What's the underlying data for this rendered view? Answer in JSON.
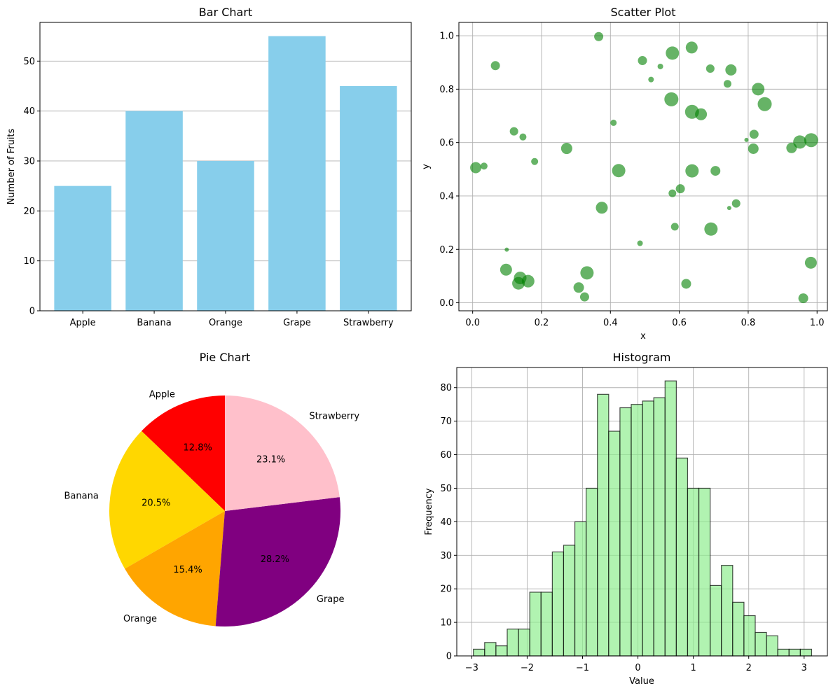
{
  "chart_data": [
    {
      "type": "bar",
      "title": "Bar Chart",
      "xlabel": "",
      "ylabel": "Number of Fruits",
      "categories": [
        "Apple",
        "Banana",
        "Orange",
        "Grape",
        "Strawberry"
      ],
      "values": [
        25,
        40,
        30,
        55,
        45
      ],
      "ylim": [
        0,
        57.75
      ],
      "yticks": [
        0,
        10,
        20,
        30,
        40,
        50
      ],
      "color": "#87ceeb",
      "grid": "y"
    },
    {
      "type": "scatter",
      "title": "Scatter Plot",
      "xlabel": "x",
      "ylabel": "y",
      "xlim": [
        -0.04,
        1.03
      ],
      "ylim": [
        -0.03,
        1.05
      ],
      "xticks": [
        "0.0",
        "0.2",
        "0.4",
        "0.6",
        "0.8",
        "1.0"
      ],
      "yticks": [
        "0.0",
        "0.2",
        "0.4",
        "0.6",
        "0.8",
        "1.0"
      ],
      "color": "#008000",
      "alpha": 0.6,
      "grid": "both",
      "points": [
        {
          "x": 0.366,
          "y": 0.997,
          "s": 13
        },
        {
          "x": 0.066,
          "y": 0.888,
          "s": 13
        },
        {
          "x": 0.493,
          "y": 0.907,
          "s": 13
        },
        {
          "x": 0.545,
          "y": 0.885,
          "s": 8
        },
        {
          "x": 0.518,
          "y": 0.836,
          "s": 8
        },
        {
          "x": 0.58,
          "y": 0.935,
          "s": 19
        },
        {
          "x": 0.636,
          "y": 0.956,
          "s": 17
        },
        {
          "x": 0.69,
          "y": 0.877,
          "s": 12
        },
        {
          "x": 0.75,
          "y": 0.872,
          "s": 16
        },
        {
          "x": 0.74,
          "y": 0.82,
          "s": 11
        },
        {
          "x": 0.829,
          "y": 0.8,
          "s": 18
        },
        {
          "x": 0.848,
          "y": 0.744,
          "s": 20
        },
        {
          "x": 0.577,
          "y": 0.762,
          "s": 20
        },
        {
          "x": 0.637,
          "y": 0.715,
          "s": 20
        },
        {
          "x": 0.663,
          "y": 0.706,
          "s": 17
        },
        {
          "x": 0.409,
          "y": 0.674,
          "s": 9
        },
        {
          "x": 0.12,
          "y": 0.642,
          "s": 12
        },
        {
          "x": 0.146,
          "y": 0.621,
          "s": 10
        },
        {
          "x": 0.18,
          "y": 0.529,
          "s": 10
        },
        {
          "x": 0.273,
          "y": 0.578,
          "s": 16
        },
        {
          "x": 0.009,
          "y": 0.506,
          "s": 16
        },
        {
          "x": 0.033,
          "y": 0.512,
          "s": 10
        },
        {
          "x": 0.424,
          "y": 0.495,
          "s": 19
        },
        {
          "x": 0.637,
          "y": 0.494,
          "s": 19
        },
        {
          "x": 0.705,
          "y": 0.494,
          "s": 14
        },
        {
          "x": 0.795,
          "y": 0.61,
          "s": 6
        },
        {
          "x": 0.817,
          "y": 0.631,
          "s": 13
        },
        {
          "x": 0.815,
          "y": 0.577,
          "s": 15
        },
        {
          "x": 0.926,
          "y": 0.58,
          "s": 15
        },
        {
          "x": 0.95,
          "y": 0.602,
          "s": 19
        },
        {
          "x": 0.983,
          "y": 0.609,
          "s": 20
        },
        {
          "x": 0.603,
          "y": 0.427,
          "s": 13
        },
        {
          "x": 0.58,
          "y": 0.41,
          "s": 11
        },
        {
          "x": 0.375,
          "y": 0.356,
          "s": 17
        },
        {
          "x": 0.765,
          "y": 0.372,
          "s": 12
        },
        {
          "x": 0.745,
          "y": 0.355,
          "s": 6
        },
        {
          "x": 0.587,
          "y": 0.285,
          "s": 11
        },
        {
          "x": 0.692,
          "y": 0.276,
          "s": 19
        },
        {
          "x": 0.099,
          "y": 0.199,
          "s": 6
        },
        {
          "x": 0.486,
          "y": 0.223,
          "s": 8
        },
        {
          "x": 0.097,
          "y": 0.124,
          "s": 17
        },
        {
          "x": 0.138,
          "y": 0.093,
          "s": 18
        },
        {
          "x": 0.133,
          "y": 0.073,
          "s": 18
        },
        {
          "x": 0.161,
          "y": 0.081,
          "s": 18
        },
        {
          "x": 0.332,
          "y": 0.112,
          "s": 19
        },
        {
          "x": 0.308,
          "y": 0.057,
          "s": 15
        },
        {
          "x": 0.325,
          "y": 0.022,
          "s": 13
        },
        {
          "x": 0.62,
          "y": 0.071,
          "s": 14
        },
        {
          "x": 0.982,
          "y": 0.15,
          "s": 17
        },
        {
          "x": 0.96,
          "y": 0.017,
          "s": 14
        }
      ]
    },
    {
      "type": "pie",
      "title": "Pie Chart",
      "labels": [
        "Apple",
        "Banana",
        "Orange",
        "Grape",
        "Strawberry"
      ],
      "values": [
        25,
        40,
        30,
        55,
        45
      ],
      "percent_labels": [
        "12.8%",
        "20.5%",
        "15.4%",
        "28.2%",
        "23.1%"
      ],
      "colors": [
        "#ff0000",
        "#ffd700",
        "#ffa500",
        "#800080",
        "#ffc0cb"
      ],
      "startangle": 90
    },
    {
      "type": "bar",
      "subtype": "histogram",
      "title": "Histogram",
      "xlabel": "Value",
      "ylabel": "Frequency",
      "bin_start": -2.97,
      "bin_width": 0.2035,
      "counts": [
        2,
        4,
        3,
        8,
        8,
        19,
        19,
        31,
        33,
        40,
        50,
        78,
        67,
        74,
        75,
        76,
        77,
        82,
        59,
        50,
        50,
        21,
        27,
        16,
        12,
        7,
        6,
        2,
        2,
        2
      ],
      "xlim": [
        -3.27,
        3.42
      ],
      "ylim": [
        0,
        86
      ],
      "xticks": [
        -3,
        -2,
        -1,
        0,
        1,
        2,
        3
      ],
      "xtick_labels": [
        "−3",
        "−2",
        "−1",
        "0",
        "1",
        "2",
        "3"
      ],
      "yticks": [
        0,
        10,
        20,
        30,
        40,
        50,
        60,
        70,
        80
      ],
      "color": "#90ee90",
      "edgecolor": "#000000",
      "alpha": 0.7,
      "grid": "both"
    }
  ]
}
